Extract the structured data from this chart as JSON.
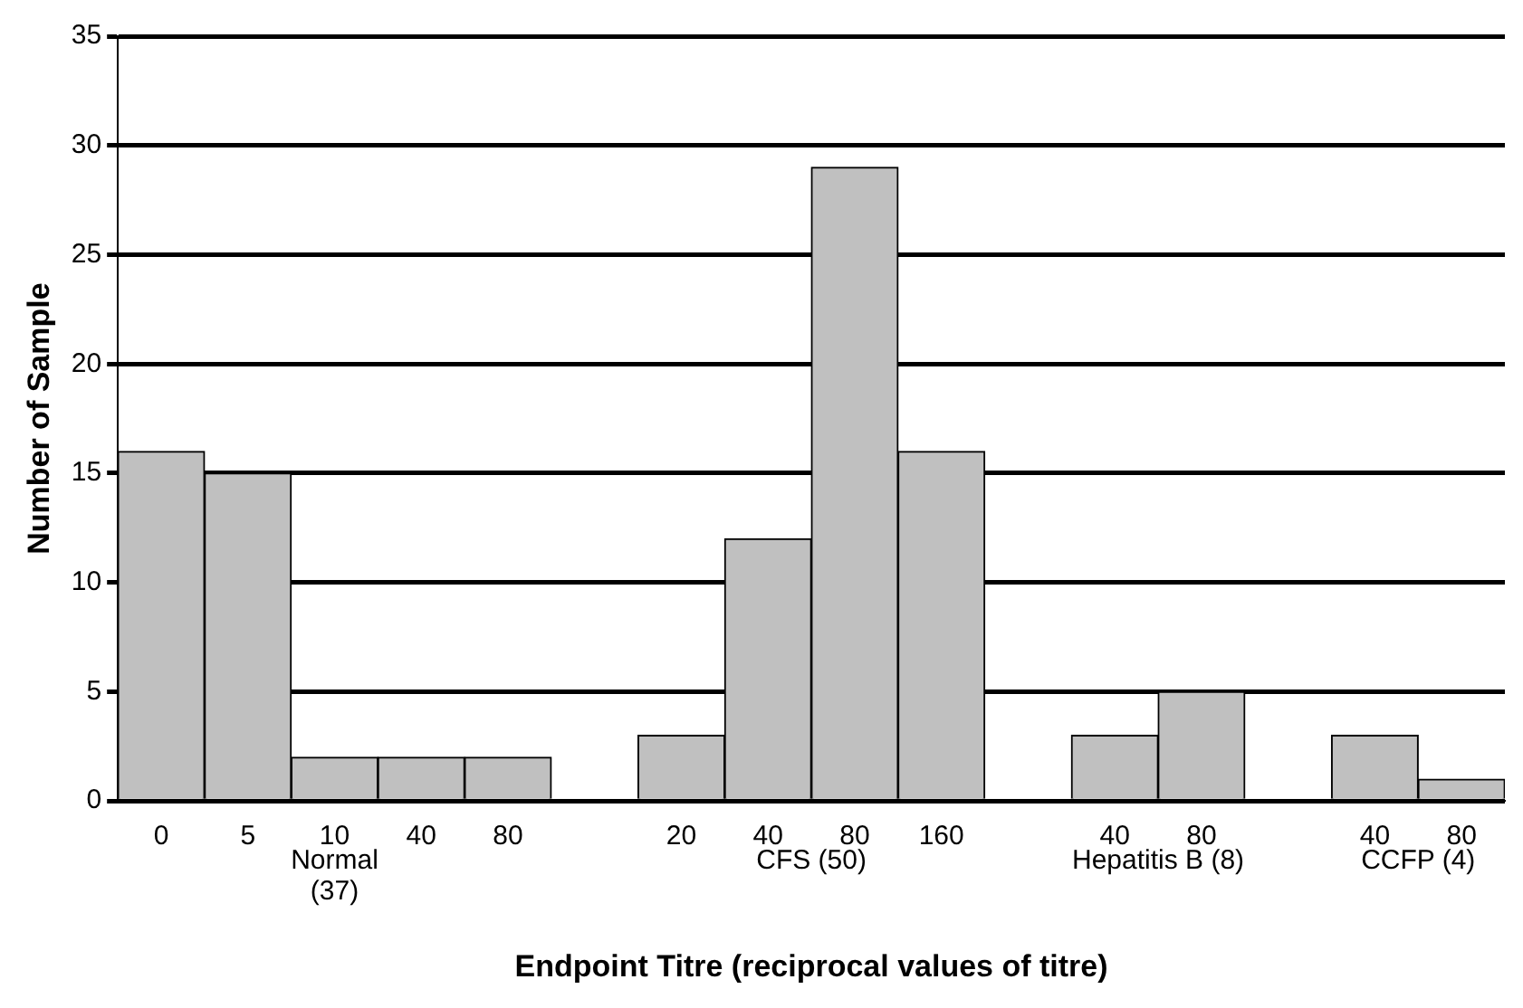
{
  "chart_data": {
    "type": "bar",
    "xlabel": "Endpoint Titre (reciprocal values of titre)",
    "ylabel": "Number of Sample",
    "categories": [
      "0",
      "5",
      "10",
      "40",
      "80",
      null,
      "20",
      "40",
      "80",
      "160",
      null,
      "40",
      "80",
      null,
      "40",
      "80"
    ],
    "values": [
      16,
      15,
      2,
      2,
      2,
      null,
      3,
      12,
      29,
      16,
      null,
      3,
      5,
      null,
      3,
      1
    ],
    "color": "#c0c0c0",
    "ylim": [
      0,
      35
    ],
    "yticks": [
      0,
      5,
      10,
      15,
      20,
      25,
      30,
      35
    ],
    "grid": "y",
    "legend": false,
    "annotations": [
      "Normal (37)",
      "CFS (50)",
      "Hepatitis B (8)",
      "CCFP (4)"
    ]
  }
}
